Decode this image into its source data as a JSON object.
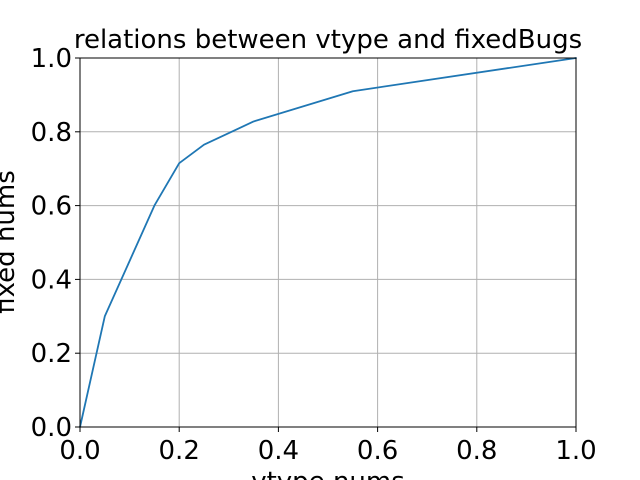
{
  "chart_data": {
    "type": "line",
    "title": "relations between vtype and fixedBugs",
    "xlabel": "vtype nums",
    "ylabel": "fixed nums",
    "xlim": [
      0.0,
      1.0
    ],
    "ylim": [
      0.0,
      1.0
    ],
    "xticks": [
      "0.0",
      "0.2",
      "0.4",
      "0.6",
      "0.8",
      "1.0"
    ],
    "yticks": [
      "0.0",
      "0.2",
      "0.4",
      "0.6",
      "0.8",
      "1.0"
    ],
    "grid": true,
    "series": [
      {
        "color": "#1f77b4",
        "x": [
          0.0,
          0.05,
          0.1,
          0.15,
          0.2,
          0.25,
          0.35,
          0.55,
          1.0
        ],
        "y": [
          0.0,
          0.3,
          0.45,
          0.6,
          0.715,
          0.765,
          0.828,
          0.91,
          1.0
        ]
      }
    ]
  }
}
